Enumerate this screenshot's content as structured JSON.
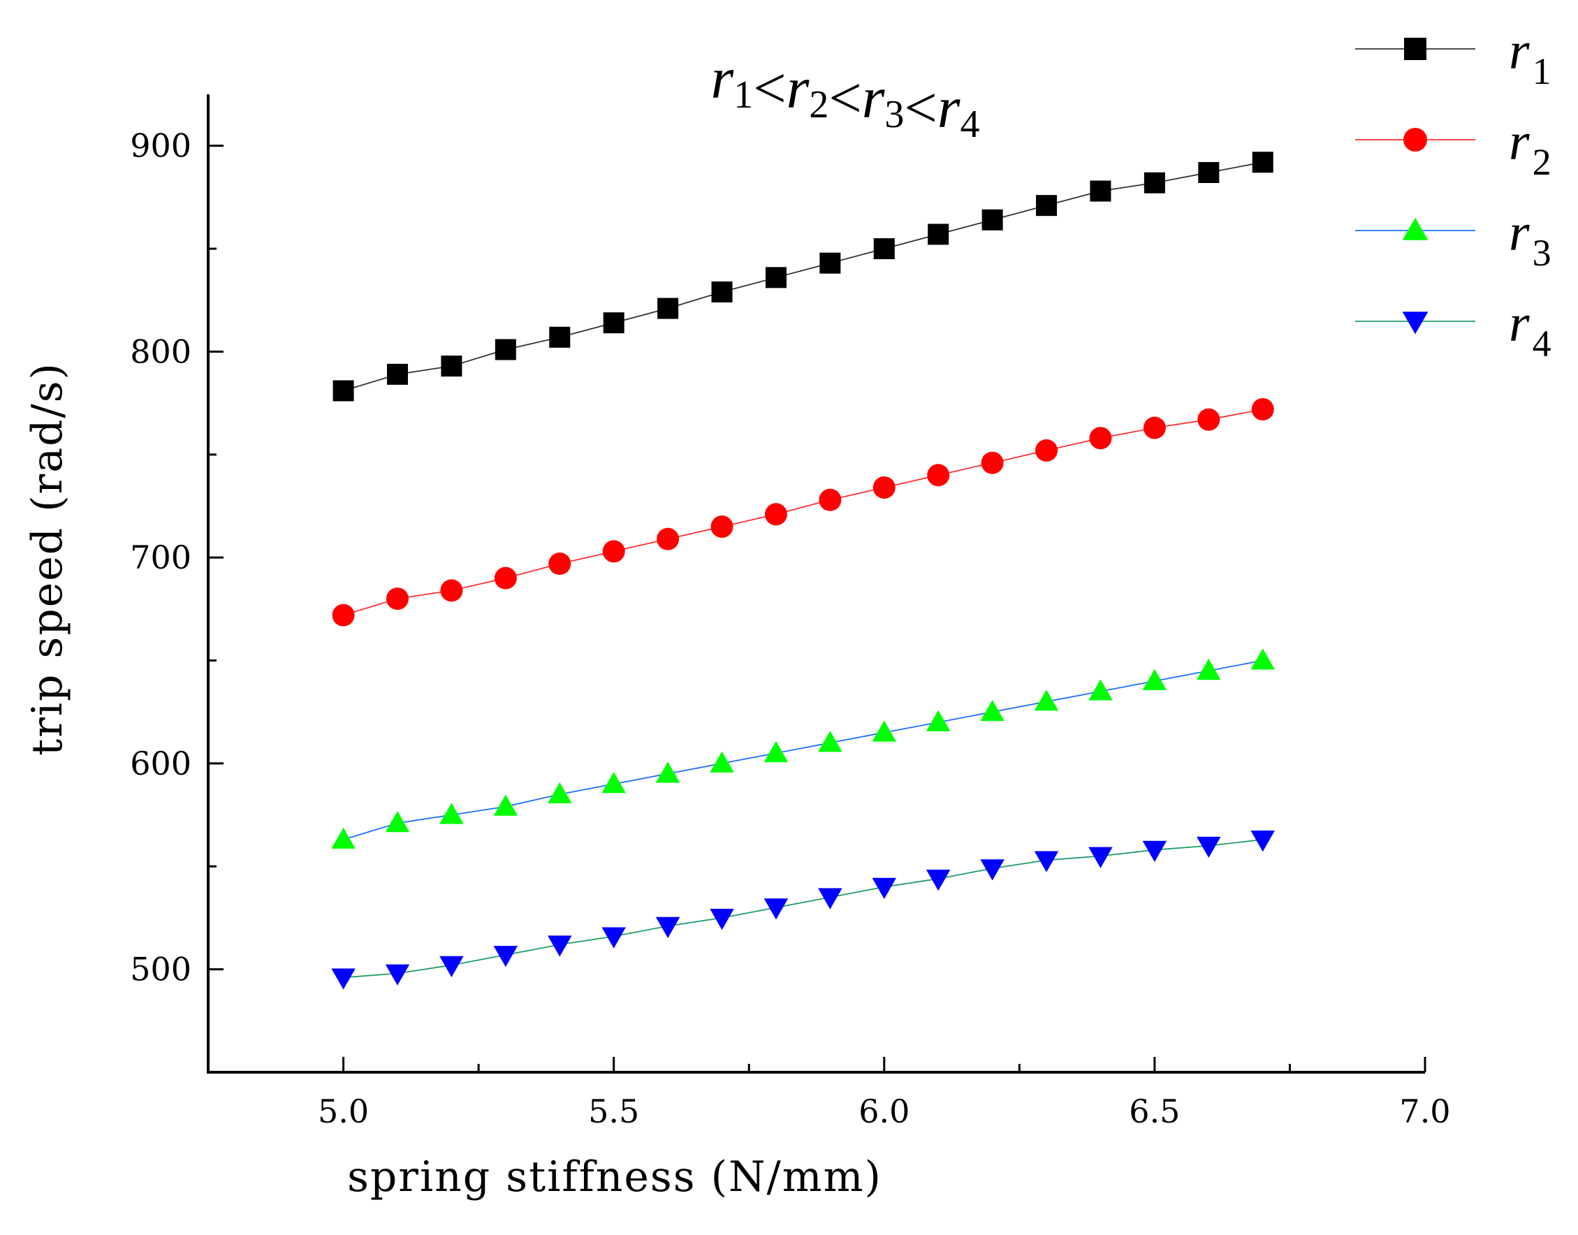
{
  "chart_data": {
    "type": "line",
    "title": {
      "parts": [
        {
          "base": "r",
          "sub": "1"
        },
        {
          "sep": "<"
        },
        {
          "base": "r",
          "sub": "2"
        },
        {
          "sep": "<"
        },
        {
          "base": "r",
          "sub": "3"
        },
        {
          "sep": "<"
        },
        {
          "base": "r",
          "sub": "4"
        }
      ]
    },
    "xlabel": "spring stiffness (N/mm)",
    "ylabel": "trip speed (rad/s)",
    "xlim": [
      4.75,
      7.0
    ],
    "ylim": [
      450,
      925
    ],
    "xticks": [
      5.0,
      5.5,
      6.0,
      6.5,
      7.0
    ],
    "xtick_labels": [
      "5.0",
      "5.5",
      "6.0",
      "6.5",
      "7.0"
    ],
    "xminor": [
      4.75,
      5.25,
      5.75,
      6.25,
      6.75
    ],
    "yticks": [
      500,
      600,
      700,
      800,
      900
    ],
    "ytick_labels": [
      "500",
      "600",
      "700",
      "800",
      "900"
    ],
    "yminor": [
      550,
      650,
      750,
      850
    ],
    "grid": false,
    "legend_position": "outside top-right",
    "x": [
      5.0,
      5.1,
      5.2,
      5.3,
      5.4,
      5.5,
      5.6,
      5.7,
      5.8,
      5.9,
      6.0,
      6.1,
      6.2,
      6.3,
      6.4,
      6.5,
      6.6,
      6.7
    ],
    "series": [
      {
        "name": "r1",
        "base": "r",
        "sub": "1",
        "marker": "square",
        "line_color": "#333333",
        "marker_color": "#000000",
        "values": [
          781,
          789,
          793,
          801,
          807,
          814,
          821,
          829,
          836,
          843,
          850,
          857,
          864,
          871,
          878,
          882,
          887,
          892
        ]
      },
      {
        "name": "r2",
        "base": "r",
        "sub": "2",
        "marker": "circle",
        "line_color": "#ff3030",
        "marker_color": "#ff0000",
        "values": [
          672,
          680,
          684,
          690,
          697,
          703,
          709,
          715,
          721,
          728,
          734,
          740,
          746,
          752,
          758,
          763,
          767,
          772
        ]
      },
      {
        "name": "r3",
        "base": "r",
        "sub": "3",
        "marker": "triangle-up",
        "line_color": "#1e6fff",
        "marker_color": "#00ff00",
        "values": [
          563,
          571,
          575,
          579,
          585,
          590,
          595,
          600,
          605,
          610,
          615,
          620,
          625,
          630,
          635,
          640,
          645,
          650
        ]
      },
      {
        "name": "r4",
        "base": "r",
        "sub": "4",
        "marker": "triangle-down",
        "line_color": "#1f9e66",
        "marker_color": "#0000ff",
        "values": [
          496,
          498,
          502,
          507,
          512,
          516,
          521,
          525,
          530,
          535,
          540,
          544,
          549,
          553,
          555,
          558,
          560,
          563
        ]
      }
    ]
  }
}
